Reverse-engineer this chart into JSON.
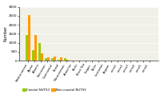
{
  "categories": [
    "Mediterranean",
    "Alpine",
    "Atlantic",
    "Pannonian",
    "Continental",
    "Boreal",
    "Macaronesian",
    "Anatolian",
    "Arctic",
    "Black Sea",
    "Steppic",
    "Baltic",
    "Lusitanian",
    "Aegean",
    "extra1",
    "extra2",
    "extra3",
    "extra4",
    "extra5",
    "extra6"
  ],
  "coastal": [
    1430,
    580,
    1000,
    130,
    130,
    40,
    140,
    2,
    2,
    2,
    2,
    2,
    2,
    5,
    0,
    0,
    0,
    0,
    0,
    0
  ],
  "non_coastal": [
    2550,
    1430,
    425,
    185,
    245,
    175,
    40,
    15,
    5,
    5,
    5,
    5,
    5,
    5,
    3,
    3,
    3,
    3,
    3,
    3
  ],
  "coastal_color": "#99cc00",
  "non_coastal_color": "#ff9900",
  "ylabel": "Number",
  "ylim": [
    0,
    3000
  ],
  "yticks": [
    0,
    500,
    1000,
    1500,
    2000,
    2500,
    3000
  ],
  "legend_coastal": "Coastal NUTS3",
  "legend_non_coastal": "Non-coastal NUTS3",
  "bg_color": "#ffffff",
  "plot_bg_color": "#f0f0e8"
}
